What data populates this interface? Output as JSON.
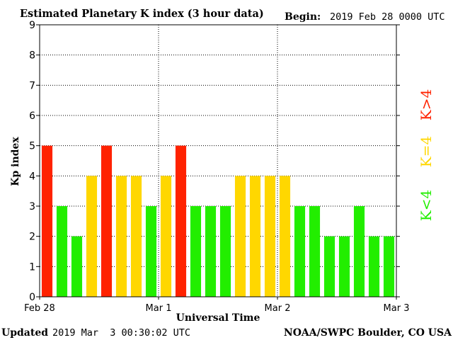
{
  "header": {
    "title": "Estimated Planetary K index (3 hour data)",
    "begin_label": "Begin:",
    "begin_value": "2019 Feb 28 0000 UTC"
  },
  "footer": {
    "updated_label": "Updated",
    "updated_value": "2019 Mar  3 00:30:02 UTC",
    "source": "NOAA/SWPC Boulder, CO USA"
  },
  "legend": [
    {
      "label": "K<4",
      "color": "#22ee00"
    },
    {
      "label": "K=4",
      "color": "#ffd700"
    },
    {
      "label": "K>4",
      "color": "#ff2200"
    }
  ],
  "chart_data": {
    "type": "bar",
    "title": "Estimated Planetary K index (3 hour data)",
    "xlabel": "Universal Time",
    "ylabel": "Kp index",
    "ylim": [
      0,
      9
    ],
    "yticks": [
      0,
      1,
      2,
      3,
      4,
      5,
      6,
      7,
      8,
      9
    ],
    "xtick_labels": [
      "Feb 28",
      "Mar 1",
      "Mar 2",
      "Mar 3"
    ],
    "grid": true,
    "colors": {
      "low": "#22ee00",
      "mid": "#ffd700",
      "high": "#ff2200"
    },
    "values": [
      5,
      3,
      2,
      4,
      5,
      4,
      4,
      3,
      4,
      5,
      3,
      3,
      3,
      4,
      4,
      4,
      4,
      3,
      3,
      2,
      2,
      3,
      2,
      2
    ]
  }
}
